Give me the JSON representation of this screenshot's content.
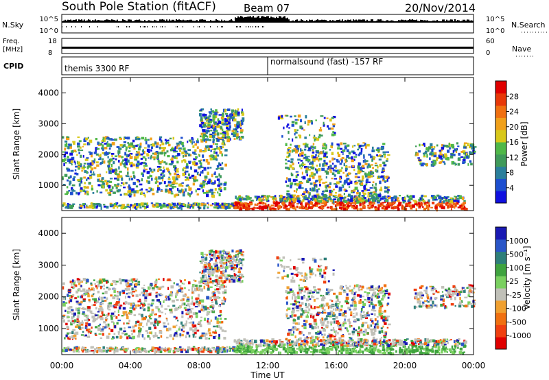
{
  "header": {
    "title": "South Pole Station (fitACF)",
    "beam": "Beam 07",
    "date": "20/Nov/2014"
  },
  "top_panels": {
    "nsky_label": "N.Sky",
    "nsearch_label": "N.Search",
    "n_ticks_left": [
      "10^5",
      "10^0"
    ],
    "n_ticks_right": [
      "10^5",
      "10^0"
    ],
    "freq_label_1": "Freq.",
    "freq_label_2": "[MHz]",
    "freq_ticks": [
      "18",
      "8"
    ],
    "nave_label": "Nave",
    "nave_ticks": [
      "60",
      "0"
    ],
    "cpid_label": "CPID",
    "cpid_segments": [
      {
        "label": "themis 3300 RF",
        "start_hour": 0
      },
      {
        "label": "normalsound (fast) -157 RF",
        "start_hour": 12
      }
    ]
  },
  "chart_data": [
    {
      "type": "heatmap",
      "name": "power",
      "ylabel": "Slant Range [km]",
      "xlabel": "",
      "x_ticks": [
        "00:00",
        "04:00",
        "08:00",
        "12:00",
        "16:00",
        "20:00",
        "00:00"
      ],
      "xlim_hours": [
        0,
        24
      ],
      "ylim": [
        180,
        4500
      ],
      "y_ticks": [
        1000,
        2000,
        3000,
        4000
      ],
      "colorbar": {
        "label": "Power [dB]",
        "ticks": [
          "4",
          "8",
          "12",
          "16",
          "20",
          "24",
          "28"
        ],
        "colors": [
          "#1010e0",
          "#1d4fd0",
          "#2a7f9c",
          "#3f9a5a",
          "#4fb848",
          "#d8c81a",
          "#f0a01a",
          "#f07010",
          "#e83808",
          "#e00000"
        ]
      }
    },
    {
      "type": "heatmap",
      "name": "velocity",
      "ylabel": "Slant Range [km]",
      "xlabel": "Time UT",
      "x_ticks": [
        "00:00",
        "04:00",
        "08:00",
        "12:00",
        "16:00",
        "20:00",
        "00:00"
      ],
      "xlim_hours": [
        0,
        24
      ],
      "ylim": [
        180,
        4500
      ],
      "y_ticks": [
        1000,
        2000,
        3000,
        4000
      ],
      "colorbar": {
        "label": "Velocity [m s⁻¹]",
        "ticks": [
          "1000",
          "500",
          "100",
          "25",
          "-25",
          "-100",
          "-500",
          "-1000"
        ],
        "colors": [
          "#1a1ab4",
          "#2a56c8",
          "#2e7f7a",
          "#3fa33f",
          "#7ad060",
          "#c0c0b8",
          "#f0a030",
          "#f07010",
          "#f04010",
          "#e00000"
        ]
      }
    }
  ],
  "colors": {
    "frame": "#000000",
    "ground_scatter": "#c8c8c0"
  }
}
